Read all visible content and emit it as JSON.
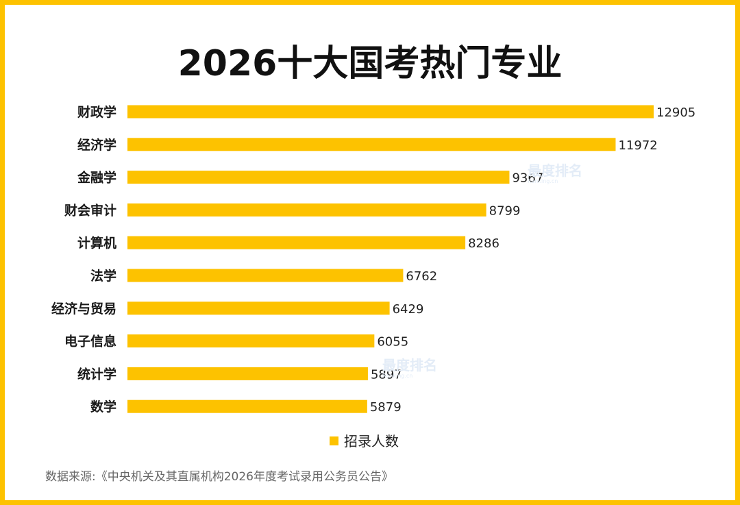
{
  "colors": {
    "frame": "#FDC200",
    "bar": "#FDC200",
    "text": "#111111"
  },
  "chart_data": {
    "type": "bar",
    "orientation": "horizontal",
    "title": "2026十大国考热门专业",
    "categories": [
      "财政学",
      "经济学",
      "金融学",
      "财会审计",
      "计算机",
      "法学",
      "经济与贸易",
      "电子信息",
      "统计学",
      "数学"
    ],
    "series": [
      {
        "name": "招录人数",
        "values": [
          12905,
          11972,
          9367,
          8799,
          8286,
          6762,
          6429,
          6055,
          5897,
          5879
        ]
      }
    ],
    "xlim": [
      0,
      12905
    ],
    "legend": "bottom-center",
    "grid": false
  },
  "source": "数据来源:《中央机关及其直属机构2026年度考试录用公务员公告》",
  "watermark": {
    "text": "最度排名",
    "sub": "Ranking.cn"
  }
}
